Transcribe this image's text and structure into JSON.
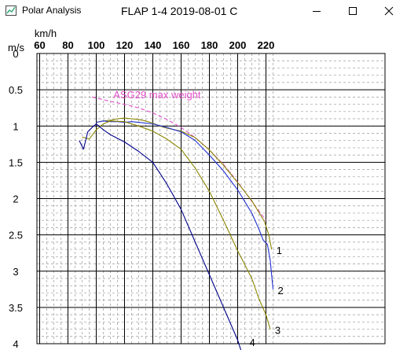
{
  "window": {
    "title": "Polar Analysis",
    "buttons": [
      {
        "name": "minimize-button",
        "icon": "minimize-icon"
      },
      {
        "name": "maximize-button",
        "icon": "maximize-icon"
      },
      {
        "name": "close-button",
        "icon": "close-icon"
      }
    ]
  },
  "chart_data": {
    "type": "line",
    "title": "FLAP 1-4  2019-08-01 C",
    "xlabel": "km/h",
    "ylabel": "m/s",
    "xlim": [
      60,
      225
    ],
    "ylim": [
      0,
      4
    ],
    "x_axis_position": "top",
    "y_inverted": true,
    "grid": true,
    "xticks": [
      60,
      80,
      100,
      120,
      140,
      160,
      180,
      200,
      220
    ],
    "yticks": [
      0,
      0.5,
      1,
      1.5,
      2,
      2.5,
      3,
      3.5,
      4
    ],
    "series": [
      {
        "name": "ASG29 max weight",
        "color": "#e24fc9",
        "style": "dashed",
        "x": [
          97,
          110,
          120,
          130,
          140,
          150,
          160,
          170,
          180,
          190,
          200,
          210,
          220
        ],
        "y": [
          0.6,
          0.66,
          0.7,
          0.75,
          0.82,
          0.91,
          1.02,
          1.16,
          1.33,
          1.53,
          1.77,
          2.04,
          2.3
        ]
      },
      {
        "name": "1",
        "color": "#8b8500",
        "x": [
          100,
          105,
          110,
          115,
          120,
          125,
          130,
          135,
          140,
          145,
          150,
          160,
          170,
          180,
          190,
          200,
          210,
          215,
          219,
          222,
          224
        ],
        "y": [
          0.95,
          0.93,
          0.92,
          0.9,
          0.89,
          0.9,
          0.91,
          0.93,
          0.96,
          1.0,
          1.03,
          1.07,
          1.16,
          1.33,
          1.54,
          1.78,
          2.03,
          2.19,
          2.32,
          2.5,
          2.7
        ]
      },
      {
        "name": "2",
        "color": "#1f2fd1",
        "x": [
          100,
          105,
          110,
          115,
          120,
          125,
          130,
          140,
          150,
          160,
          170,
          180,
          190,
          200,
          210,
          215,
          218,
          221,
          223,
          225
        ],
        "y": [
          0.95,
          0.93,
          0.94,
          0.94,
          0.95,
          0.94,
          0.95,
          0.97,
          1.02,
          1.08,
          1.2,
          1.4,
          1.62,
          1.88,
          2.2,
          2.42,
          2.57,
          2.63,
          2.85,
          3.25
        ]
      },
      {
        "name": "3",
        "color": "#8b8500",
        "x": [
          90,
          95,
          100,
          105,
          110,
          120,
          130,
          140,
          150,
          160,
          170,
          180,
          190,
          200,
          210,
          215,
          220,
          223
        ],
        "y": [
          1.15,
          1.18,
          1.05,
          0.97,
          0.93,
          0.94,
          1.0,
          1.07,
          1.18,
          1.32,
          1.58,
          1.9,
          2.3,
          2.72,
          3.1,
          3.38,
          3.6,
          3.8
        ]
      },
      {
        "name": "4",
        "color": "#00008b",
        "x": [
          88,
          91,
          94,
          97,
          100,
          105,
          110,
          120,
          130,
          140,
          150,
          160,
          170,
          180,
          190,
          200,
          205
        ],
        "y": [
          1.2,
          1.32,
          1.08,
          1.02,
          0.97,
          1.05,
          1.12,
          1.22,
          1.35,
          1.5,
          1.8,
          2.15,
          2.6,
          3.05,
          3.5,
          3.95,
          4.25
        ]
      }
    ],
    "annotations": [
      {
        "text": "ASG29 max weight",
        "x": 143,
        "y": 0.62,
        "color": "#e24fc9"
      }
    ]
  }
}
